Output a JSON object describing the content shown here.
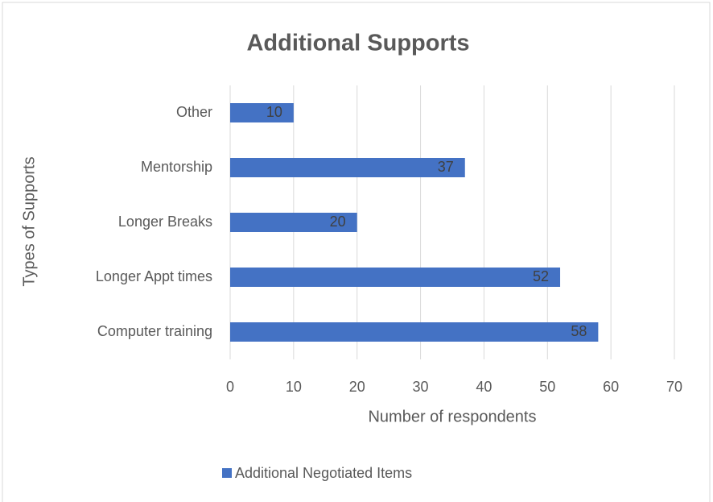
{
  "chart_data": {
    "type": "bar",
    "orientation": "horizontal",
    "title": "Additional Supports",
    "xlabel": "Number of respondents",
    "ylabel": "Types of Supports",
    "categories": [
      "Computer training",
      "Longer Appt times",
      "Longer Breaks",
      "Mentorship",
      "Other"
    ],
    "series": [
      {
        "name": "Additional Negotiated Items",
        "color": "#4472c4",
        "values": [
          58,
          52,
          20,
          37,
          10
        ]
      }
    ],
    "xlim": [
      0,
      70
    ],
    "xticks": [
      0,
      10,
      20,
      30,
      40,
      50,
      60,
      70
    ],
    "grid": true,
    "legend": "bottom"
  }
}
